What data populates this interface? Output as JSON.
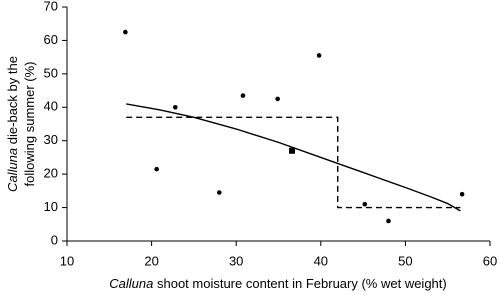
{
  "chart_data": {
    "type": "scatter",
    "xlabel": [
      "Calluna",
      "shoot moisture content in February (% wet weight)"
    ],
    "ylabel": [
      [
        "Calluna",
        "die-back by the"
      ],
      [
        "following summer (%)"
      ]
    ],
    "xlim": [
      10,
      60
    ],
    "xticks": [
      10,
      20,
      30,
      40,
      50,
      60
    ],
    "ylim": [
      0,
      70
    ],
    "yticks": [
      0,
      10,
      20,
      30,
      40,
      50,
      60,
      70
    ],
    "series": [
      {
        "style": "points",
        "marker": "circle",
        "color": "#000000",
        "x": [
          16.9,
          20.6,
          22.8,
          28,
          30.8,
          34.9,
          39.8,
          45.2,
          48,
          56.7
        ],
        "values": [
          62.5,
          21.5,
          40,
          14.5,
          43.5,
          42.5,
          55.5,
          11,
          6,
          14
        ]
      },
      {
        "style": "points",
        "marker": "square",
        "color": "#000000",
        "x": [
          36.6
        ],
        "values": [
          27
        ]
      },
      {
        "style": "line",
        "color": "#000000",
        "x": [
          17,
          21,
          25,
          30,
          35,
          40,
          45,
          50,
          53,
          55,
          56.5
        ],
        "values": [
          41,
          39.2,
          37,
          33.5,
          29.5,
          25,
          20.5,
          16,
          13.2,
          11.2,
          9
        ]
      },
      {
        "style": "dashed",
        "color": "#000000",
        "x": [
          17,
          42,
          42,
          56.5
        ],
        "values": [
          37,
          37,
          10,
          10
        ]
      }
    ]
  }
}
